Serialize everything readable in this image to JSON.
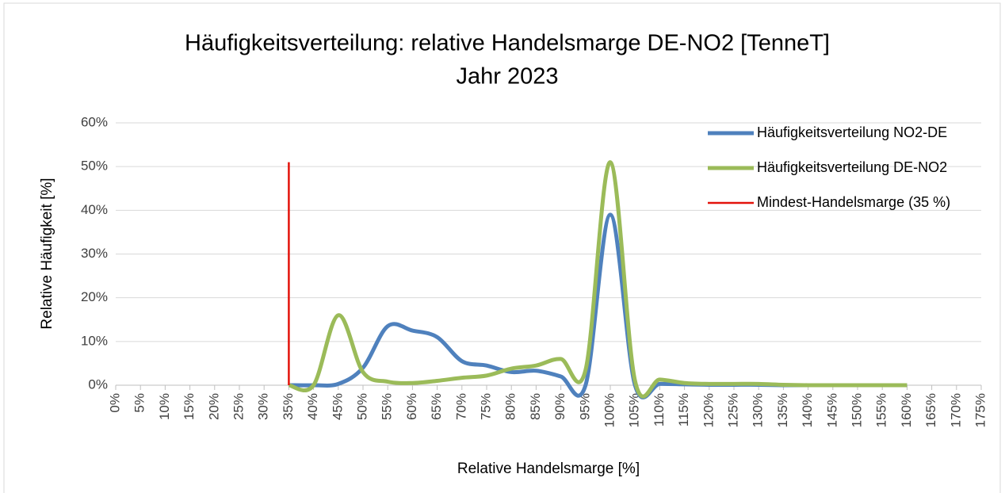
{
  "chart_data": {
    "type": "line",
    "title": [
      "Häufigkeitsverteilung: relative Handelsmarge DE-NO2 [TenneT]",
      "Jahr 2023"
    ],
    "x_label": "Relative Handelsmarge [%]",
    "y_label": "Relative Häufigkeit [%]",
    "xlim": [
      0,
      175
    ],
    "xticks": [
      {
        "value": 0,
        "label": "0%"
      },
      {
        "value": 5,
        "label": "5%"
      },
      {
        "value": 10,
        "label": "10%"
      },
      {
        "value": 15,
        "label": "15%"
      },
      {
        "value": 20,
        "label": "20%"
      },
      {
        "value": 25,
        "label": "25%"
      },
      {
        "value": 30,
        "label": "30%"
      },
      {
        "value": 35,
        "label": "35%"
      },
      {
        "value": 40,
        "label": "40%"
      },
      {
        "value": 45,
        "label": "45%"
      },
      {
        "value": 50,
        "label": "50%"
      },
      {
        "value": 55,
        "label": "55%"
      },
      {
        "value": 60,
        "label": "60%"
      },
      {
        "value": 65,
        "label": "65%"
      },
      {
        "value": 70,
        "label": "70%"
      },
      {
        "value": 75,
        "label": "75%"
      },
      {
        "value": 80,
        "label": "80%"
      },
      {
        "value": 85,
        "label": "85%"
      },
      {
        "value": 90,
        "label": "90%"
      },
      {
        "value": 95,
        "label": "95%"
      },
      {
        "value": 100,
        "label": "100%"
      },
      {
        "value": 105,
        "label": "105%"
      },
      {
        "value": 110,
        "label": "110%"
      },
      {
        "value": 115,
        "label": "115%"
      },
      {
        "value": 120,
        "label": "120%"
      },
      {
        "value": 125,
        "label": "125%"
      },
      {
        "value": 130,
        "label": "130%"
      },
      {
        "value": 135,
        "label": "135%"
      },
      {
        "value": 140,
        "label": "140%"
      },
      {
        "value": 145,
        "label": "145%"
      },
      {
        "value": 150,
        "label": "150%"
      },
      {
        "value": 155,
        "label": "155%"
      },
      {
        "value": 160,
        "label": "160%"
      },
      {
        "value": 165,
        "label": "165%"
      },
      {
        "value": 170,
        "label": "170%"
      },
      {
        "value": 175,
        "label": "175%"
      }
    ],
    "ylim": [
      0,
      60
    ],
    "yticks": [
      {
        "value": 0,
        "label": "0%"
      },
      {
        "value": 10,
        "label": "10%"
      },
      {
        "value": 20,
        "label": "20%"
      },
      {
        "value": 30,
        "label": "30%"
      },
      {
        "value": 40,
        "label": "40%"
      },
      {
        "value": 50,
        "label": "50%"
      },
      {
        "value": 60,
        "label": "60%"
      }
    ],
    "grid": true,
    "legend": "top-right",
    "series": [
      {
        "name": "Häufigkeitsverteilung NO2-DE",
        "color": "#4f81bd",
        "smooth": true,
        "x": [
          35,
          40,
          45,
          50,
          55,
          60,
          65,
          70,
          75,
          80,
          85,
          90,
          95,
          100,
          105,
          110,
          115,
          120,
          125,
          130,
          135,
          140,
          145,
          150,
          155,
          160
        ],
        "values": [
          0,
          0,
          0.3,
          4,
          13.5,
          12.5,
          11,
          5.5,
          4.5,
          3,
          3.3,
          2,
          0,
          39,
          0,
          0.3,
          0.2,
          0.1,
          0.1,
          0.1,
          0,
          0,
          0,
          0,
          0,
          0
        ]
      },
      {
        "name": "Häufigkeitsverteilung DE-NO2",
        "color": "#9bbb59",
        "smooth": true,
        "x": [
          35,
          40,
          45,
          50,
          55,
          60,
          65,
          70,
          75,
          80,
          85,
          90,
          95,
          100,
          105,
          110,
          115,
          120,
          125,
          130,
          135,
          140,
          145,
          150,
          155,
          160
        ],
        "values": [
          0,
          0,
          16,
          3,
          0.8,
          0.5,
          1,
          1.7,
          2.2,
          3.8,
          4.5,
          6,
          3.5,
          51,
          1,
          1.3,
          0.5,
          0.3,
          0.3,
          0.3,
          0.1,
          0,
          0,
          0,
          0,
          0
        ]
      },
      {
        "name": "Mindest-Handelsmarge (35 %)",
        "color": "#e3120b",
        "smooth": false,
        "x": [
          35,
          35
        ],
        "values": [
          0,
          51
        ]
      }
    ]
  }
}
